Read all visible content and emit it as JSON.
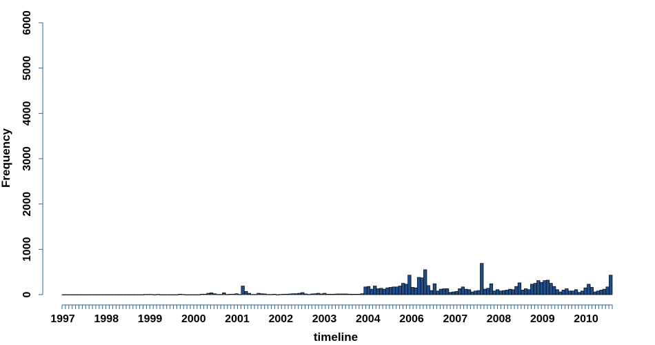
{
  "chart_data": {
    "type": "bar",
    "xlabel": "timeline",
    "ylabel": "Frequency",
    "ylim": [
      0,
      6000
    ],
    "yticks": [
      "0",
      "1000",
      "2000",
      "3000",
      "4000",
      "5000",
      "6000"
    ],
    "x_tick_labels": [
      "1997",
      "1998",
      "1999",
      "2000",
      "2001",
      "2002",
      "2003",
      "2004",
      "2006",
      "2007",
      "2008",
      "2009",
      "2010"
    ],
    "bar_color": "#1f4e8c",
    "axis_color": "#2a6496",
    "grid": false,
    "legend": "none",
    "values": [
      0,
      0,
      0,
      0,
      0,
      0,
      0,
      0,
      0,
      0,
      0,
      0,
      0,
      0,
      0,
      0,
      0,
      0,
      0,
      0,
      0,
      0,
      0,
      0,
      0,
      0,
      5,
      5,
      5,
      0,
      5,
      0,
      0,
      0,
      0,
      0,
      0,
      10,
      5,
      0,
      0,
      0,
      0,
      0,
      10,
      10,
      30,
      40,
      20,
      5,
      5,
      40,
      5,
      10,
      10,
      20,
      5,
      190,
      70,
      30,
      5,
      5,
      30,
      20,
      15,
      5,
      5,
      10,
      0,
      5,
      10,
      10,
      15,
      20,
      20,
      30,
      45,
      15,
      5,
      15,
      20,
      30,
      15,
      30,
      10,
      10,
      10,
      15,
      15,
      15,
      15,
      10,
      10,
      10,
      10,
      20,
      170,
      180,
      120,
      190,
      130,
      140,
      120,
      150,
      160,
      170,
      170,
      190,
      250,
      230,
      430,
      160,
      150,
      380,
      370,
      550,
      200,
      90,
      240,
      80,
      120,
      130,
      130,
      50,
      60,
      70,
      130,
      170,
      120,
      110,
      60,
      80,
      90,
      690,
      120,
      140,
      240,
      80,
      110,
      80,
      90,
      100,
      120,
      110,
      180,
      260,
      100,
      130,
      110,
      230,
      250,
      310,
      270,
      310,
      320,
      250,
      180,
      110,
      60,
      100,
      130,
      80,
      80,
      110,
      50,
      80,
      150,
      230,
      160,
      60,
      80,
      100,
      120,
      170,
      430
    ]
  }
}
